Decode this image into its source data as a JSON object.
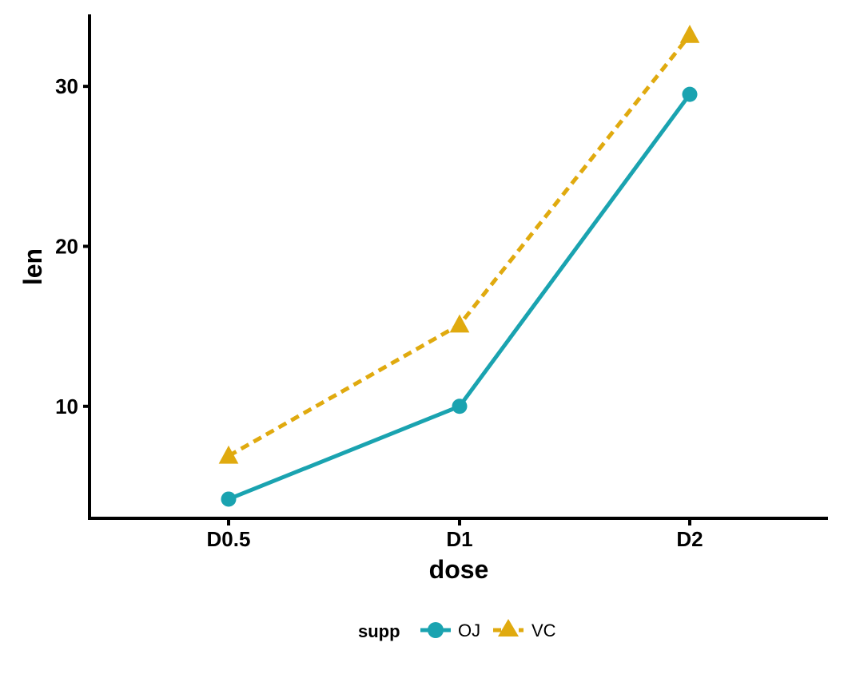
{
  "chart_data": {
    "type": "line",
    "xlabel": "dose",
    "ylabel": "len",
    "categories": [
      "D0.5",
      "D1",
      "D2"
    ],
    "ylim": [
      3,
      34.5
    ],
    "y_ticks": [
      10,
      20,
      30
    ],
    "grid": false,
    "legend": {
      "title": "supp",
      "placement": "bottom"
    },
    "series": [
      {
        "name": "OJ",
        "values": [
          4.2,
          10.0,
          29.5
        ],
        "color": "#1AA3B0",
        "line_style": "solid",
        "marker": "circle"
      },
      {
        "name": "VC",
        "values": [
          6.9,
          15.1,
          33.2
        ],
        "color": "#E0AA0F",
        "line_style": "dashed",
        "marker": "triangle"
      }
    ]
  }
}
